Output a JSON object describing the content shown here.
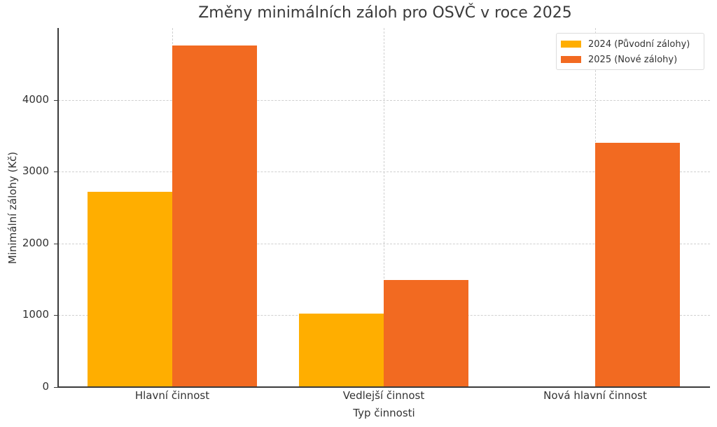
{
  "chart_data": {
    "type": "bar",
    "title": "Změny minimálních záloh pro OSVČ v roce 2025",
    "xlabel": "Typ činnosti",
    "ylabel": "Minimální zálohy (Kč)",
    "categories": [
      "Hlavní činnost",
      "Vedlejší činnost",
      "Nová hlavní činnost"
    ],
    "series": [
      {
        "name": "2024 (Původní zálohy)",
        "color": "#FFAE00",
        "values": [
          2722,
          1019,
          0
        ]
      },
      {
        "name": "2025 (Nové zálohy)",
        "color": "#F26A21",
        "values": [
          4759,
          1496,
          3399
        ]
      }
    ],
    "ylim": [
      0,
      5000
    ],
    "yticks": [
      0,
      1000,
      2000,
      3000,
      4000
    ],
    "grid": true,
    "legend_position": "upper right"
  },
  "ui": {
    "yticks": [
      "0",
      "1000",
      "2000",
      "3000",
      "4000"
    ]
  }
}
